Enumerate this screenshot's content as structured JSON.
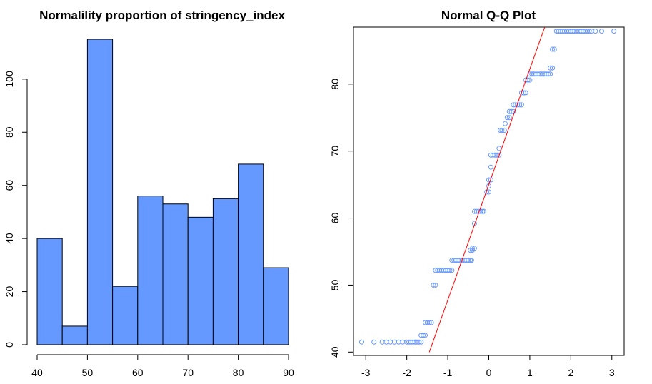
{
  "chart_data": [
    {
      "type": "bar",
      "title": "Normalility proportion of stringency_index",
      "xlabel": "",
      "ylabel": "",
      "bin_edges": [
        40,
        45,
        50,
        55,
        60,
        65,
        70,
        75,
        80,
        85,
        90
      ],
      "values": [
        40,
        7,
        115,
        22,
        56,
        53,
        48,
        55,
        68,
        29
      ],
      "x_ticks": [
        40,
        50,
        60,
        70,
        80,
        90
      ],
      "y_ticks": [
        0,
        20,
        40,
        60,
        80,
        100
      ],
      "xlim": [
        40,
        90
      ],
      "ylim": [
        0,
        115
      ],
      "bar_color": "#6699FF",
      "grid": false
    },
    {
      "type": "scatter",
      "title": "Normal Q-Q Plot",
      "xlabel": "",
      "ylabel": "",
      "x_ticks": [
        -3,
        -2,
        -1,
        0,
        1,
        2,
        3
      ],
      "y_ticks": [
        40,
        50,
        60,
        70,
        80
      ],
      "xlim": [
        -3.3,
        3.3
      ],
      "ylim": [
        39.5,
        88.5
      ],
      "point_color": "#6699FF",
      "line_color": "#FF0000",
      "reference_line": [
        [
          -1.45,
          40.0
        ],
        [
          1.45,
          90.0
        ]
      ],
      "points_approx": [
        {
          "x": [
            -3.1,
            -2.8,
            -2.6,
            -2.5,
            -2.4,
            -2.3,
            -2.2,
            -2.1,
            -2.0,
            -1.95,
            -1.9,
            -1.85,
            -1.8,
            -1.75,
            -1.7,
            -1.65
          ],
          "y": 41.5
        },
        {
          "x": [
            -1.65,
            -1.6,
            -1.55
          ],
          "y": 42.5
        },
        {
          "x": [
            -1.55,
            -1.5,
            -1.45,
            -1.4
          ],
          "y": 44.4
        },
        {
          "x": [
            -1.35,
            -1.3
          ],
          "y": 50.0
        },
        {
          "x": [
            -1.3,
            -1.25,
            -1.2,
            -1.15,
            -1.1,
            -1.05,
            -1.0,
            -0.95,
            -0.9
          ],
          "y": 52.2
        },
        {
          "x": [
            -0.9,
            -0.85,
            -0.8,
            -0.75,
            -0.7,
            -0.65,
            -0.6,
            -0.55,
            -0.5,
            -0.45,
            -0.42
          ],
          "y": 53.7
        },
        {
          "x": [
            -0.45,
            -0.4
          ],
          "y": 55.2
        },
        {
          "x": [
            -0.4,
            -0.35
          ],
          "y": 55.5
        },
        {
          "x": [
            -0.35
          ],
          "y": 59.2
        },
        {
          "x": [
            -0.35,
            -0.3,
            -0.25,
            -0.2,
            -0.15,
            -0.12
          ],
          "y": 61.0
        },
        {
          "x": [
            -0.05,
            0.0
          ],
          "y": 63.9
        },
        {
          "x": [
            0.0
          ],
          "y": 64.8
        },
        {
          "x": [
            0.0,
            0.05
          ],
          "y": 65.7
        },
        {
          "x": [
            0.05
          ],
          "y": 67.6
        },
        {
          "x": [
            0.05,
            0.1,
            0.15,
            0.2,
            0.25
          ],
          "y": 69.4
        },
        {
          "x": [
            0.25
          ],
          "y": 70.4
        },
        {
          "x": [
            0.28,
            0.32,
            0.38
          ],
          "y": 73.1
        },
        {
          "x": [
            0.4
          ],
          "y": 74.1
        },
        {
          "x": [
            0.45,
            0.5
          ],
          "y": 75.0
        },
        {
          "x": [
            0.5,
            0.55,
            0.6
          ],
          "y": 75.9
        },
        {
          "x": [
            0.6,
            0.65,
            0.7,
            0.75,
            0.8
          ],
          "y": 76.9
        },
        {
          "x": [
            0.8,
            0.85,
            0.9
          ],
          "y": 78.7
        },
        {
          "x": [
            0.9,
            0.95,
            1.0
          ],
          "y": 80.6
        },
        {
          "x": [
            1.0,
            1.05,
            1.1,
            1.15,
            1.2,
            1.25,
            1.3,
            1.35,
            1.4,
            1.45,
            1.5
          ],
          "y": 81.5
        },
        {
          "x": [
            1.5,
            1.55
          ],
          "y": 82.4
        },
        {
          "x": [
            1.55,
            1.6
          ],
          "y": 85.2
        },
        {
          "x": [
            1.65,
            1.7,
            1.75,
            1.8,
            1.85,
            1.9,
            1.95,
            2.0,
            2.05,
            2.1,
            2.15,
            2.2,
            2.25,
            2.3,
            2.35,
            2.4,
            2.45,
            2.5,
            2.6,
            2.75,
            3.05
          ],
          "y": 87.9
        }
      ],
      "grid": false
    }
  ]
}
